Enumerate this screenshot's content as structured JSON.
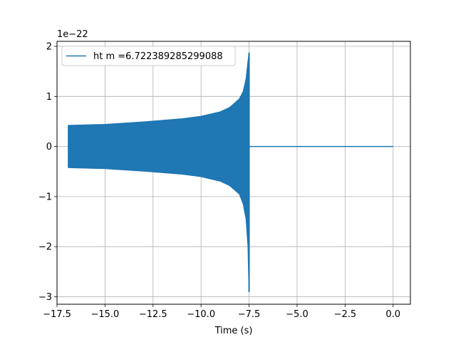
{
  "chart_data": {
    "type": "line",
    "title": "",
    "xlabel": "Time (s)",
    "ylabel": "",
    "y_offset_label": "1e−22",
    "xlim": [
      -17.5,
      0.9
    ],
    "ylim": [
      -3.15,
      2.1
    ],
    "x_ticks": [
      -17.5,
      -15.0,
      -12.5,
      -10.0,
      -7.5,
      -5.0,
      -2.5,
      0.0
    ],
    "x_tick_labels": [
      "−17.5",
      "−15.0",
      "−12.5",
      "−10.0",
      "−7.5",
      "−5.0",
      "−2.5",
      "0.0"
    ],
    "y_ticks": [
      -3,
      -2,
      -1,
      0,
      1,
      2
    ],
    "y_tick_labels": [
      "−3",
      "−2",
      "−1",
      "0",
      "1",
      "2"
    ],
    "grid": true,
    "legend": {
      "placement": "upper-left",
      "entries": [
        "ht m =6.722389285299088"
      ]
    },
    "series": [
      {
        "name": "ht m =6.722389285299088",
        "color": "#1f77b4",
        "envelope_upper": [
          [
            -16.9,
            0.42
          ],
          [
            -15.0,
            0.44
          ],
          [
            -13.0,
            0.49
          ],
          [
            -11.0,
            0.55
          ],
          [
            -10.0,
            0.6
          ],
          [
            -9.0,
            0.69
          ],
          [
            -8.5,
            0.78
          ],
          [
            -8.0,
            0.95
          ],
          [
            -7.8,
            1.1
          ],
          [
            -7.65,
            1.35
          ],
          [
            -7.55,
            1.7
          ],
          [
            -7.5,
            1.87
          ]
        ],
        "envelope_lower": [
          [
            -16.9,
            -0.42
          ],
          [
            -15.0,
            -0.44
          ],
          [
            -13.0,
            -0.49
          ],
          [
            -11.0,
            -0.55
          ],
          [
            -10.0,
            -0.6
          ],
          [
            -9.0,
            -0.69
          ],
          [
            -8.5,
            -0.78
          ],
          [
            -8.0,
            -0.95
          ],
          [
            -7.8,
            -1.15
          ],
          [
            -7.65,
            -1.45
          ],
          [
            -7.55,
            -2.0
          ],
          [
            -7.5,
            -2.9
          ]
        ],
        "post_merger": [
          [
            -7.45,
            0.0
          ],
          [
            0.0,
            0.0
          ]
        ]
      }
    ]
  }
}
